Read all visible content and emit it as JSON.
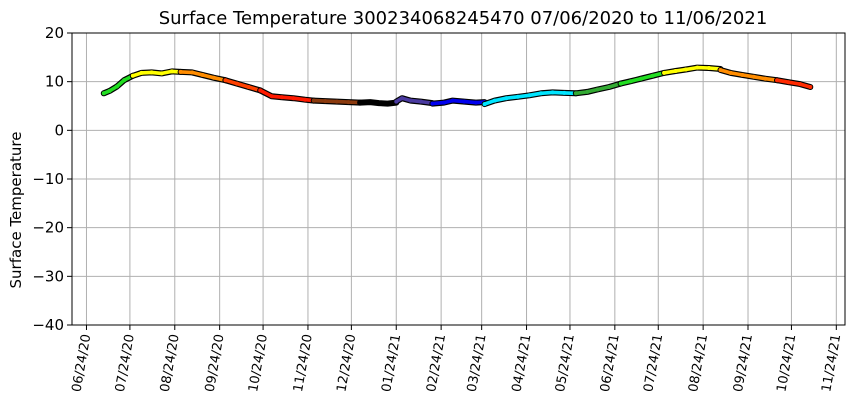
{
  "chart_data": {
    "type": "scatter",
    "title": "Surface Temperature 300234068245470  07/06/2020 to 11/06/2021",
    "xlabel": "",
    "ylabel": "Surface Temperature",
    "ylim": [
      -40,
      20
    ],
    "yticks": [
      20,
      10,
      0,
      -10,
      -20,
      -30,
      -40
    ],
    "xlim": [
      "2020-06-14",
      "2021-11-30"
    ],
    "xtick_labels": [
      "06/24/20",
      "07/24/20",
      "08/24/20",
      "09/24/20",
      "10/24/20",
      "11/24/20",
      "12/24/20",
      "01/24/21",
      "02/24/21",
      "03/24/21",
      "04/24/21",
      "05/24/21",
      "06/24/21",
      "07/24/21",
      "08/24/21",
      "09/24/21",
      "10/24/21",
      "11/24/21"
    ],
    "xtick_dates": [
      "2020-06-24",
      "2020-07-24",
      "2020-08-24",
      "2020-09-24",
      "2020-10-24",
      "2020-11-24",
      "2020-12-24",
      "2021-01-24",
      "2021-02-24",
      "2021-03-24",
      "2021-04-24",
      "2021-05-24",
      "2021-06-24",
      "2021-07-24",
      "2021-08-24",
      "2021-09-24",
      "2021-10-24",
      "2021-11-24"
    ],
    "grid": true,
    "legend": "none",
    "series": [
      {
        "color": "#22dd22",
        "points": [
          [
            "2020-07-06",
            7.6
          ],
          [
            "2020-07-10",
            8.1
          ],
          [
            "2020-07-15",
            9.0
          ],
          [
            "2020-07-20",
            10.3
          ],
          [
            "2020-07-26",
            11.2
          ]
        ]
      },
      {
        "color": "#ffff00",
        "points": [
          [
            "2020-07-26",
            11.2
          ],
          [
            "2020-08-01",
            11.8
          ],
          [
            "2020-08-08",
            11.9
          ],
          [
            "2020-08-15",
            11.7
          ],
          [
            "2020-08-22",
            12.1
          ],
          [
            "2020-08-28",
            12.0
          ]
        ]
      },
      {
        "color": "#ff8c00",
        "points": [
          [
            "2020-08-28",
            12.0
          ],
          [
            "2020-09-05",
            11.9
          ],
          [
            "2020-09-12",
            11.4
          ],
          [
            "2020-09-20",
            10.8
          ],
          [
            "2020-09-28",
            10.3
          ]
        ]
      },
      {
        "color": "#ff4000",
        "points": [
          [
            "2020-09-28",
            10.3
          ],
          [
            "2020-10-06",
            9.6
          ],
          [
            "2020-10-14",
            8.9
          ],
          [
            "2020-10-22",
            8.2
          ]
        ]
      },
      {
        "color": "#ff1a00",
        "points": [
          [
            "2020-10-22",
            8.2
          ],
          [
            "2020-10-30",
            7.0
          ],
          [
            "2020-11-06",
            6.8
          ],
          [
            "2020-11-14",
            6.6
          ],
          [
            "2020-11-22",
            6.3
          ],
          [
            "2020-11-28",
            6.1
          ]
        ]
      },
      {
        "color": "#8b3a0e",
        "points": [
          [
            "2020-11-28",
            6.1
          ],
          [
            "2020-12-06",
            6.0
          ],
          [
            "2020-12-14",
            5.9
          ],
          [
            "2020-12-22",
            5.8
          ],
          [
            "2020-12-30",
            5.7
          ]
        ]
      },
      {
        "color": "#000000",
        "points": [
          [
            "2020-12-30",
            5.7
          ],
          [
            "2021-01-06",
            5.8
          ],
          [
            "2021-01-12",
            5.6
          ],
          [
            "2021-01-18",
            5.5
          ],
          [
            "2021-01-24",
            5.7
          ]
        ]
      },
      {
        "color": "#4a3aa0",
        "points": [
          [
            "2021-01-24",
            5.9
          ],
          [
            "2021-01-28",
            6.6
          ],
          [
            "2021-02-03",
            6.1
          ],
          [
            "2021-02-10",
            5.9
          ],
          [
            "2021-02-18",
            5.6
          ]
        ]
      },
      {
        "color": "#0000ee",
        "points": [
          [
            "2021-02-18",
            5.5
          ],
          [
            "2021-02-26",
            5.7
          ],
          [
            "2021-03-04",
            6.1
          ],
          [
            "2021-03-12",
            5.9
          ],
          [
            "2021-03-20",
            5.7
          ],
          [
            "2021-03-26",
            5.8
          ]
        ]
      },
      {
        "color": "#00e5ff",
        "points": [
          [
            "2021-03-26",
            5.4
          ],
          [
            "2021-04-02",
            6.1
          ],
          [
            "2021-04-10",
            6.6
          ],
          [
            "2021-04-18",
            6.9
          ],
          [
            "2021-04-26",
            7.2
          ],
          [
            "2021-05-04",
            7.6
          ],
          [
            "2021-05-12",
            7.8
          ],
          [
            "2021-05-20",
            7.7
          ],
          [
            "2021-05-28",
            7.6
          ]
        ]
      },
      {
        "color": "#33aa33",
        "points": [
          [
            "2021-05-28",
            7.6
          ],
          [
            "2021-06-05",
            7.9
          ],
          [
            "2021-06-12",
            8.4
          ],
          [
            "2021-06-20",
            8.9
          ],
          [
            "2021-06-28",
            9.6
          ]
        ]
      },
      {
        "color": "#22dd22",
        "points": [
          [
            "2021-06-28",
            9.6
          ],
          [
            "2021-07-05",
            10.1
          ],
          [
            "2021-07-12",
            10.6
          ],
          [
            "2021-07-20",
            11.2
          ],
          [
            "2021-07-28",
            11.8
          ]
        ]
      },
      {
        "color": "#ffff00",
        "points": [
          [
            "2021-07-28",
            11.8
          ],
          [
            "2021-08-05",
            12.2
          ],
          [
            "2021-08-12",
            12.5
          ],
          [
            "2021-08-20",
            12.9
          ],
          [
            "2021-08-28",
            12.8
          ],
          [
            "2021-09-05",
            12.6
          ]
        ]
      },
      {
        "color": "#ff8c00",
        "points": [
          [
            "2021-09-05",
            12.4
          ],
          [
            "2021-09-12",
            11.8
          ],
          [
            "2021-09-20",
            11.4
          ],
          [
            "2021-09-28",
            11.0
          ],
          [
            "2021-10-06",
            10.6
          ],
          [
            "2021-10-14",
            10.3
          ]
        ]
      },
      {
        "color": "#ff2a00",
        "points": [
          [
            "2021-10-14",
            10.3
          ],
          [
            "2021-10-22",
            9.9
          ],
          [
            "2021-10-30",
            9.5
          ],
          [
            "2021-11-06",
            8.9
          ]
        ]
      }
    ]
  }
}
